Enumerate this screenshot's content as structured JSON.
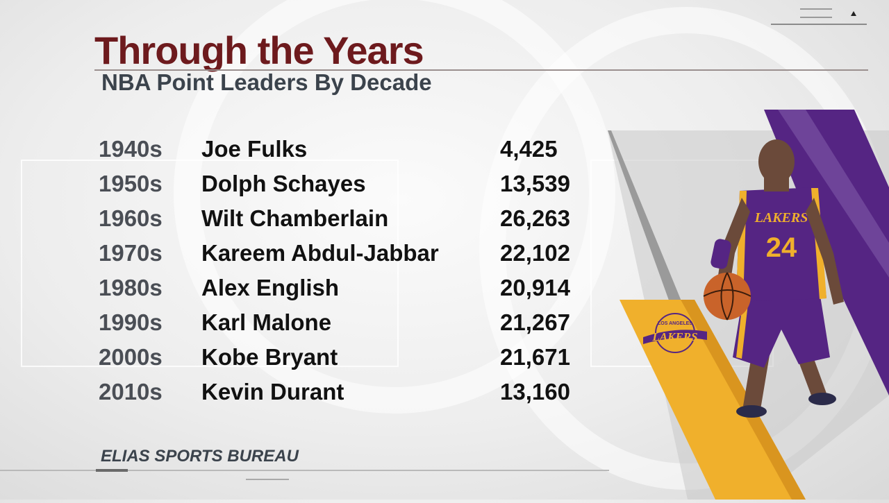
{
  "header": {
    "title": "Through the Years",
    "subtitle": "NBA Point Leaders By Decade"
  },
  "table": {
    "rows": [
      {
        "decade": "1940s",
        "player": "Joe Fulks",
        "points": "4,425"
      },
      {
        "decade": "1950s",
        "player": "Dolph Schayes",
        "points": "13,539"
      },
      {
        "decade": "1960s",
        "player": "Wilt Chamberlain",
        "points": "26,263"
      },
      {
        "decade": "1970s",
        "player": "Kareem Abdul-Jabbar",
        "points": "22,102"
      },
      {
        "decade": "1980s",
        "player": "Alex English",
        "points": "20,914"
      },
      {
        "decade": "1990s",
        "player": "Karl Malone",
        "points": "21,267"
      },
      {
        "decade": "2000s",
        "player": "Kobe Bryant",
        "points": "21,671"
      },
      {
        "decade": "2010s",
        "player": "Kevin Durant",
        "points": "13,160"
      }
    ]
  },
  "footer": {
    "source": "ELIAS SPORTS BUREAU"
  },
  "graphic": {
    "jersey_text": "LAKERS",
    "jersey_number": "24",
    "logo_top": "LOS ANGELES",
    "logo_main": "LAKERS"
  },
  "colors": {
    "title": "#6d1a1d",
    "subtitle": "#3b434c",
    "lakers_purple": "#552583",
    "lakers_gold": "#f0b02c"
  },
  "icons": [
    "menu-lines-icon",
    "caret-up-icon"
  ]
}
